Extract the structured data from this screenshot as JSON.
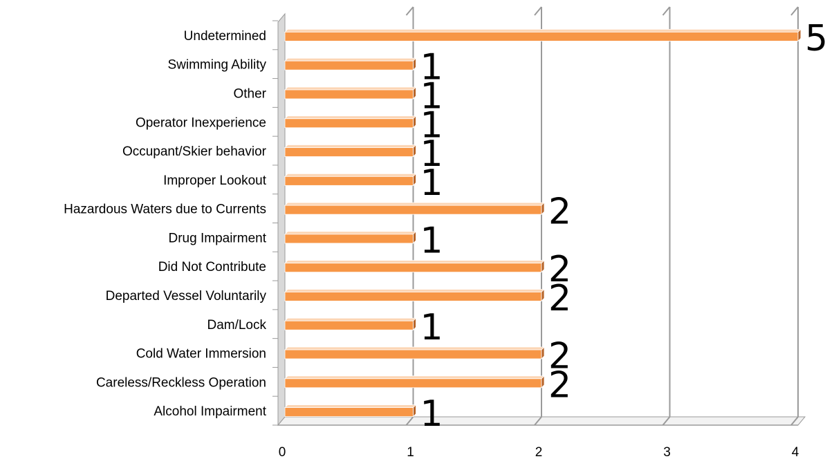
{
  "chart_data": {
    "type": "bar",
    "orientation": "horizontal",
    "style": "3d",
    "categories": [
      "Undetermined",
      "Swimming Ability",
      "Other",
      "Operator Inexperience",
      "Occupant/Skier behavior",
      "Improper Lookout",
      "Hazardous Waters due to Currents",
      "Drug Impairment",
      "Did Not Contribute",
      "Departed Vessel Voluntarily",
      "Dam/Lock",
      "Cold Water Immersion",
      "Careless/Reckless Operation",
      "Alcohol Impairment"
    ],
    "values": [
      5,
      1,
      1,
      1,
      1,
      1,
      2,
      1,
      2,
      2,
      1,
      2,
      2,
      1
    ],
    "data_labels": [
      "5",
      "1",
      "1",
      "1",
      "1",
      "1",
      "2",
      "1",
      "2",
      "2",
      "1",
      "2",
      "2",
      "1"
    ],
    "xticks": [
      "0",
      "1",
      "2",
      "3",
      "4"
    ],
    "xlim": [
      0,
      4
    ],
    "grid": true,
    "legend": "none",
    "colors": {
      "bar_front": "#F79646",
      "bar_top": "#FCD5B4",
      "bar_side": "#B7652A",
      "grid": "#9A9A9A",
      "wall": "#D9D9D9"
    }
  }
}
